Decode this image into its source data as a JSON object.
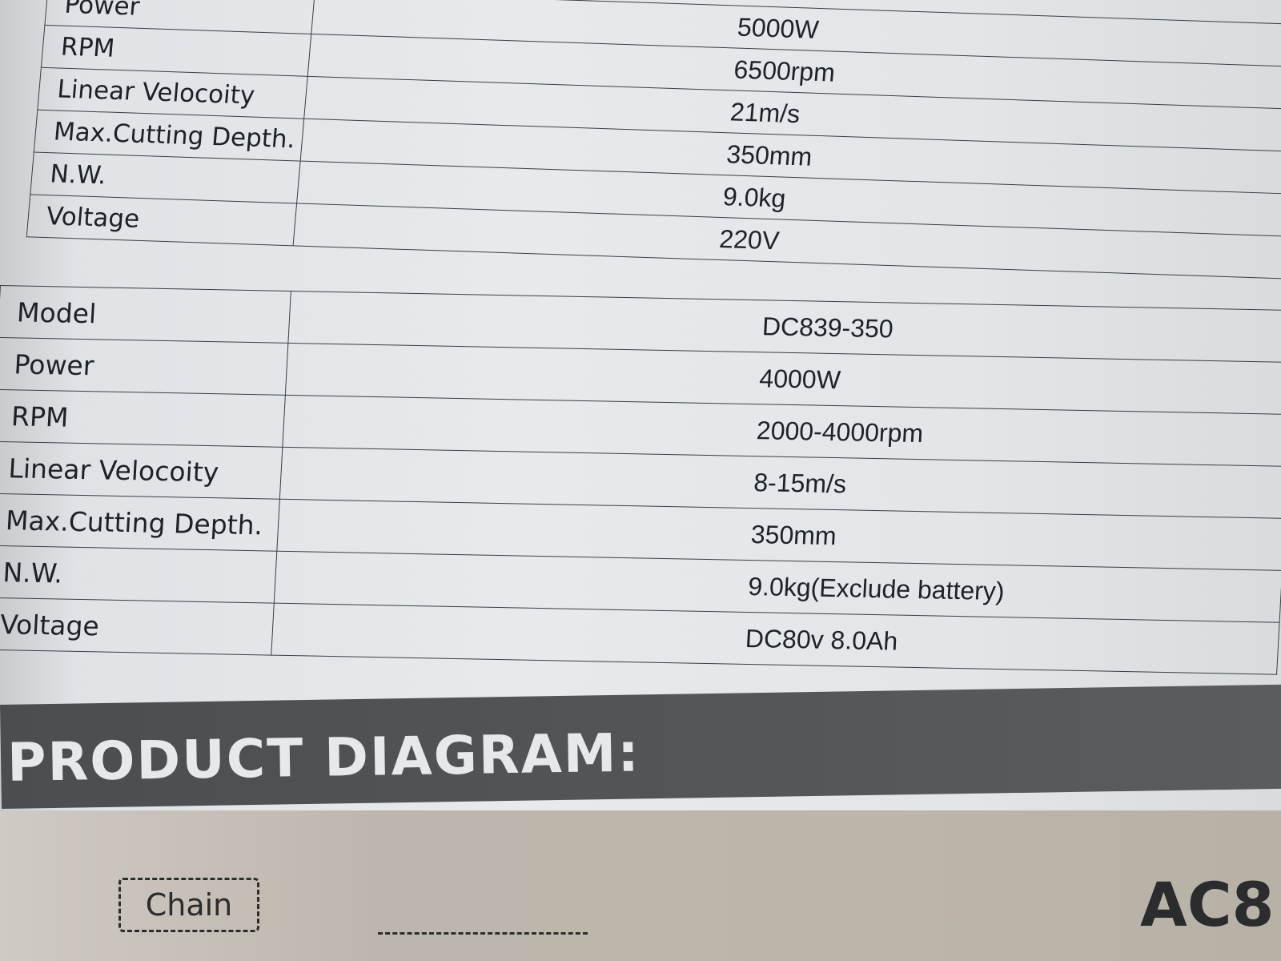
{
  "spec_table_1": {
    "rows": [
      {
        "label": "Power",
        "value": "5000W"
      },
      {
        "label": "RPM",
        "value": "6500rpm"
      },
      {
        "label": "Linear Velocoity",
        "value": "21m/s"
      },
      {
        "label": "Max.Cutting Depth.",
        "value": "350mm"
      },
      {
        "label": "N.W.",
        "value": "9.0kg"
      },
      {
        "label": "Voltage",
        "value": "220V"
      }
    ]
  },
  "spec_table_2": {
    "rows": [
      {
        "label": "Model",
        "value": "DC839-350"
      },
      {
        "label": "Power",
        "value": "4000W"
      },
      {
        "label": "RPM",
        "value": "2000-4000rpm"
      },
      {
        "label": "Linear Velocoity",
        "value": "8-15m/s"
      },
      {
        "label": "Max.Cutting Depth.",
        "value": "350mm"
      },
      {
        "label": "N.W.",
        "value": "9.0kg(Exclude battery)"
      },
      {
        "label": "Voltage",
        "value": "DC80v  8.0Ah"
      }
    ]
  },
  "section_heading": "PRODUCT DIAGRAM:",
  "diagram": {
    "callout_chain": "Chain",
    "model_partial": "AC8"
  }
}
